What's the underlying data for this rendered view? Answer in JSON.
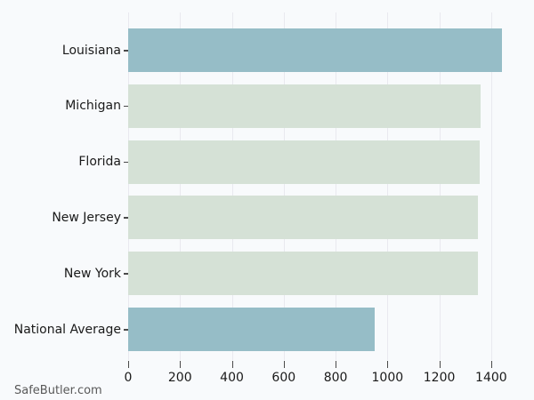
{
  "watermark": {
    "label": "SafeButler.com"
  },
  "chart_data": {
    "type": "bar",
    "orientation": "horizontal",
    "title": "",
    "xlabel": "",
    "ylabel": "",
    "categories": [
      "Louisiana",
      "Michigan",
      "Florida",
      "New Jersey",
      "New York",
      "National Average"
    ],
    "values": [
      1443,
      1358,
      1356,
      1348,
      1350,
      951
    ],
    "xlim": [
      0,
      1500
    ],
    "xticks": [
      0,
      200,
      400,
      600,
      800,
      1000,
      1200,
      1400
    ],
    "grid": "vertical-at-ticks",
    "legend": "none",
    "highlight_indices": [
      0,
      5
    ],
    "colors": {
      "highlight_bar": "#96bdc7",
      "default_bar": "#d5e1d6",
      "background": "#f8fafc",
      "gridline": "#e9e9ef",
      "tick_mark": "#4a4a4a",
      "label_text": "#1a1a1a",
      "watermark_text": "#595959"
    }
  }
}
